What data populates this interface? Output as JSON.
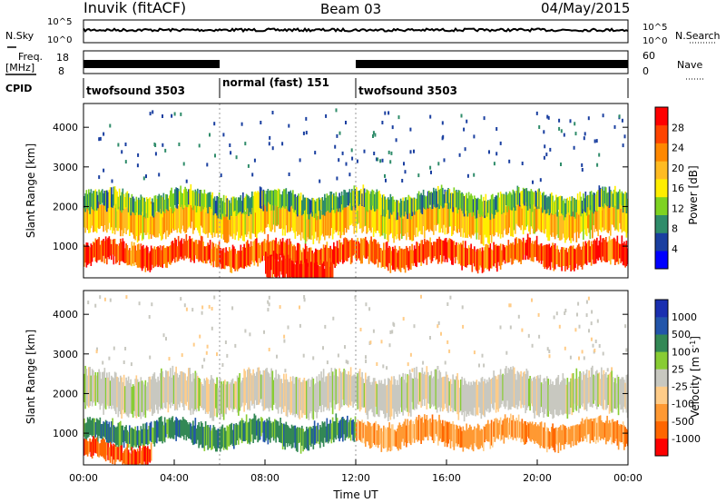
{
  "header": {
    "station": "Inuvik (fitACF)",
    "beam": "Beam 03",
    "date": "04/May/2015"
  },
  "left_labels": {
    "nsky": "N.Sky",
    "freq_line1": "Freq.",
    "freq_line2": "[MHz]",
    "cpid": "CPID"
  },
  "right_labels": {
    "nsearch": "N.Search",
    "nave": "Nave"
  },
  "noise_axis": {
    "left_ticks": [
      "10^5",
      "10^0"
    ],
    "right_ticks": [
      "10^5",
      "10^0"
    ]
  },
  "freq_axis": {
    "left_ticks": [
      "18",
      "8"
    ],
    "right_ticks": [
      "60",
      "0"
    ]
  },
  "cpid_segments": [
    {
      "label": "twofsound 3503",
      "start_h": 0,
      "end_h": 6
    },
    {
      "label": "normal (fast) 151",
      "start_h": 6,
      "end_h": 12
    },
    {
      "label": "twofsound 3503",
      "start_h": 12,
      "end_h": 24
    }
  ],
  "colors": {
    "power": [
      "#0000ff",
      "#1a3fa0",
      "#2f8c6a",
      "#7ed321",
      "#ffee00",
      "#ffbb22",
      "#ff8800",
      "#ff4400",
      "#ff0000"
    ],
    "velocity": [
      "#ff0000",
      "#ff6600",
      "#ff9933",
      "#ffcc88",
      "#c8c8c0",
      "#88cc33",
      "#338855",
      "#2255aa",
      "#1a2fb0"
    ]
  },
  "chart_data": [
    {
      "type": "heatmap",
      "name": "power",
      "ylabel": "Slant Range [km]",
      "xlim": [
        0,
        24
      ],
      "ylim": [
        200,
        4600
      ],
      "yticks": [
        1000,
        2000,
        3000,
        4000
      ],
      "colorbar": {
        "label": "Power [dB]",
        "ticks": [
          "28",
          "24",
          "20",
          "16",
          "12",
          "8",
          "4"
        ],
        "range": [
          0,
          30
        ]
      },
      "x_dividers": [
        6,
        12
      ],
      "bands": [
        {
          "start_h": 0,
          "end_h": 24,
          "center_km": 800,
          "width_km": 300,
          "value": 25
        },
        {
          "start_h": 0,
          "end_h": 24,
          "center_km": 1700,
          "width_km": 450,
          "value": 18
        },
        {
          "start_h": 0,
          "end_h": 24,
          "center_km": 2100,
          "width_km": 250,
          "value": 10
        },
        {
          "start_h": 8,
          "end_h": 11,
          "center_km": 400,
          "width_km": 300,
          "value": 29
        }
      ]
    },
    {
      "type": "heatmap",
      "name": "velocity",
      "ylabel": "Slant Range [km]",
      "xlabel": "Time UT",
      "xlim": [
        0,
        24
      ],
      "ylim": [
        200,
        4600
      ],
      "yticks": [
        1000,
        2000,
        3000,
        4000
      ],
      "xticks": [
        "00:00",
        "04:00",
        "08:00",
        "12:00",
        "16:00",
        "20:00",
        "00:00"
      ],
      "colorbar": {
        "label": "Velocity [m s^-1]",
        "ticks": [
          "1000",
          "500",
          "100",
          "25",
          "-25",
          "-100",
          "-500",
          "-1000"
        ]
      },
      "x_dividers": [
        6,
        12
      ],
      "bands": [
        {
          "start_h": 0,
          "end_h": 24,
          "center_km": 2000,
          "width_km": 500,
          "value": 0
        },
        {
          "start_h": 0,
          "end_h": 12,
          "center_km": 1000,
          "width_km": 300,
          "value": 150
        },
        {
          "start_h": 12,
          "end_h": 24,
          "center_km": 1000,
          "width_km": 300,
          "value": -200
        },
        {
          "start_h": 0,
          "end_h": 3,
          "center_km": 500,
          "width_km": 250,
          "value": -400
        }
      ]
    }
  ]
}
